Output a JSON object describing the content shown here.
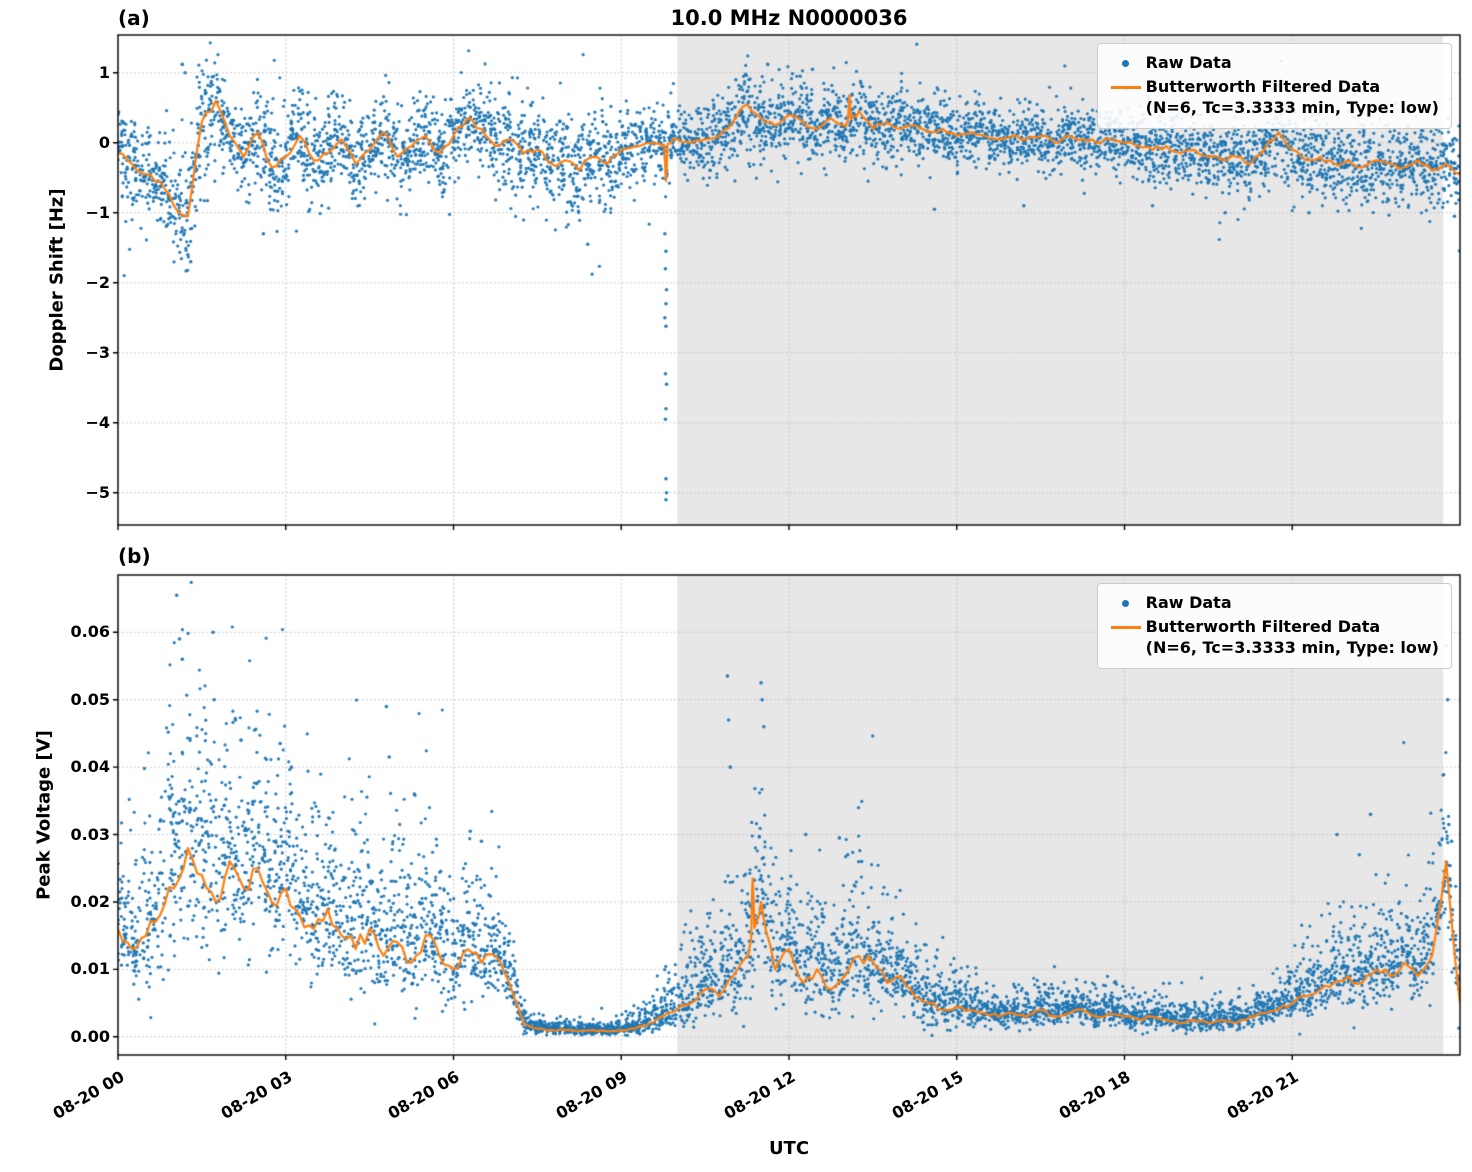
{
  "figure": {
    "xlabel": "UTC",
    "raw_color": "#1f77b4",
    "filtered_color": "#ff7f0e",
    "shade_color": "#e7e7e7",
    "legend": {
      "raw": "Raw Data",
      "filtered_line1": "Butterworth Filtered Data",
      "filtered_line2": "(N=6, Tc=3.3333 min, Type: low)"
    }
  },
  "chart_data": [
    {
      "type": "scatter",
      "panel": "(a)",
      "title": "10.0 MHz N0000036",
      "ylabel": "Doppler Shift [Hz]",
      "series": [
        {
          "name": "Raw Data"
        },
        {
          "name": "Butterworth Filtered Data (N=6, Tc=3.3333 min, Type: low)"
        }
      ],
      "xlim": [
        0,
        24
      ],
      "ylim": [
        -5.46,
        1.54
      ],
      "yticks": [
        1,
        0,
        -1,
        -2,
        -3,
        -4,
        -5
      ],
      "ytick_labels": [
        "1",
        "0",
        "−1",
        "−2",
        "−3",
        "−4",
        "−5"
      ],
      "xticks_hours": [
        0,
        3,
        6,
        9,
        12,
        15,
        18,
        21
      ],
      "xtick_labels": [
        "08-20 00",
        "08-20 03",
        "08-20 06",
        "08-20 09",
        "08-20 12",
        "08-20 15",
        "08-20 18",
        "08-20 21"
      ],
      "shade_span_hours": [
        10.0,
        23.7
      ],
      "grid": true,
      "legend_position": "upper right",
      "x_step": 0.25,
      "points_per_step": 55,
      "positive_only": false,
      "line_wiggle": 0.3,
      "filtered": [
        -0.15,
        -0.3,
        -0.45,
        -0.55,
        -0.9,
        -1.05,
        0.3,
        0.6,
        0.1,
        -0.2,
        0.15,
        -0.35,
        -0.2,
        0.1,
        -0.25,
        -0.15,
        0.05,
        -0.3,
        -0.1,
        0.15,
        -0.2,
        -0.05,
        0.1,
        -0.15,
        0.1,
        0.35,
        0.2,
        -0.05,
        0.05,
        -0.15,
        -0.1,
        -0.3,
        -0.25,
        -0.4,
        -0.2,
        -0.3,
        -0.1,
        -0.05,
        0.0,
        -0.05,
        0.05,
        0.0,
        0.05,
        0.1,
        0.3,
        0.55,
        0.35,
        0.25,
        0.4,
        0.3,
        0.2,
        0.35,
        0.25,
        0.45,
        0.2,
        0.3,
        0.2,
        0.25,
        0.15,
        0.2,
        0.1,
        0.15,
        0.1,
        0.05,
        0.1,
        0.05,
        0.1,
        0.0,
        0.1,
        0.05,
        0.0,
        0.05,
        0.0,
        -0.05,
        -0.1,
        -0.05,
        -0.15,
        -0.1,
        -0.2,
        -0.25,
        -0.2,
        -0.3,
        -0.1,
        0.15,
        -0.1,
        -0.25,
        -0.2,
        -0.3,
        -0.25,
        -0.35,
        -0.25,
        -0.3,
        -0.35,
        -0.25,
        -0.4,
        -0.3,
        -0.45
      ],
      "spread": [
        0.3,
        0.3,
        0.32,
        0.35,
        0.4,
        0.45,
        0.45,
        0.4,
        0.35,
        0.35,
        0.38,
        0.4,
        0.35,
        0.32,
        0.35,
        0.33,
        0.32,
        0.35,
        0.3,
        0.32,
        0.33,
        0.3,
        0.32,
        0.3,
        0.28,
        0.3,
        0.28,
        0.3,
        0.32,
        0.35,
        0.33,
        0.35,
        0.38,
        0.4,
        0.38,
        0.35,
        0.3,
        0.28,
        0.25,
        0.25,
        0.22,
        0.22,
        0.24,
        0.25,
        0.28,
        0.3,
        0.28,
        0.28,
        0.28,
        0.26,
        0.26,
        0.28,
        0.3,
        0.28,
        0.26,
        0.26,
        0.25,
        0.25,
        0.24,
        0.24,
        0.24,
        0.23,
        0.23,
        0.22,
        0.22,
        0.22,
        0.22,
        0.22,
        0.22,
        0.22,
        0.22,
        0.22,
        0.23,
        0.23,
        0.24,
        0.24,
        0.25,
        0.25,
        0.26,
        0.26,
        0.26,
        0.27,
        0.27,
        0.27,
        0.27,
        0.28,
        0.28,
        0.28,
        0.28,
        0.28,
        0.29,
        0.29,
        0.3,
        0.3,
        0.3,
        0.3,
        0.3
      ],
      "line_spikes": [
        [
          9.8,
          -0.55
        ],
        [
          13.08,
          0.68
        ]
      ],
      "outliers": [
        [
          9.78,
          -1.3
        ],
        [
          9.8,
          -1.55
        ],
        [
          9.79,
          -1.8
        ],
        [
          9.81,
          -2.1
        ],
        [
          9.8,
          -2.3
        ],
        [
          9.78,
          -2.5
        ],
        [
          9.8,
          -2.62
        ],
        [
          9.79,
          -3.3
        ],
        [
          9.81,
          -3.45
        ],
        [
          9.8,
          -3.8
        ],
        [
          9.79,
          -3.95
        ],
        [
          9.8,
          -4.8
        ],
        [
          9.81,
          -5.0
        ],
        [
          9.8,
          -5.1
        ],
        [
          11.62,
          1.12
        ],
        [
          12.42,
          1.05
        ],
        [
          11.05,
          0.9
        ],
        [
          12.2,
          0.95
        ],
        [
          1.15,
          1.12
        ],
        [
          1.2,
          1.0
        ],
        [
          1.3,
          -1.7
        ],
        [
          1.25,
          -1.6
        ],
        [
          8.4,
          -1.45
        ],
        [
          2.6,
          -1.3
        ],
        [
          23.9,
          -1.05
        ],
        [
          21.3,
          -1.0
        ],
        [
          14.6,
          -0.95
        ],
        [
          16.2,
          -0.9
        ],
        [
          18.5,
          -0.9
        ],
        [
          19.8,
          -1.0
        ]
      ]
    },
    {
      "type": "scatter",
      "panel": "(b)",
      "title": "",
      "ylabel": "Peak Voltage [V]",
      "series": [
        {
          "name": "Raw Data"
        },
        {
          "name": "Butterworth Filtered Data (N=6, Tc=3.3333 min, Type: low)"
        }
      ],
      "xlim": [
        0,
        24
      ],
      "ylim": [
        -0.0027,
        0.0685
      ],
      "yticks": [
        0.06,
        0.05,
        0.04,
        0.03,
        0.02,
        0.01,
        0.0
      ],
      "ytick_labels": [
        "0.06",
        "0.05",
        "0.04",
        "0.03",
        "0.02",
        "0.01",
        "0.00"
      ],
      "xticks_hours": [
        0,
        3,
        6,
        9,
        12,
        15,
        18,
        21
      ],
      "xtick_labels": [
        "08-20 00",
        "08-20 03",
        "08-20 06",
        "08-20 09",
        "08-20 12",
        "08-20 15",
        "08-20 18",
        "08-20 21"
      ],
      "shade_span_hours": [
        10.0,
        23.7
      ],
      "grid": true,
      "legend_position": "upper right",
      "x_step": 0.25,
      "points_per_step": 55,
      "positive_only": true,
      "line_wiggle": 0.3,
      "filtered": [
        0.016,
        0.013,
        0.015,
        0.018,
        0.022,
        0.028,
        0.024,
        0.02,
        0.026,
        0.022,
        0.025,
        0.02,
        0.022,
        0.018,
        0.016,
        0.019,
        0.015,
        0.013,
        0.016,
        0.012,
        0.014,
        0.011,
        0.015,
        0.012,
        0.01,
        0.013,
        0.011,
        0.012,
        0.008,
        0.002,
        0.0012,
        0.001,
        0.001,
        0.0009,
        0.001,
        0.0008,
        0.001,
        0.0012,
        0.002,
        0.003,
        0.004,
        0.005,
        0.007,
        0.006,
        0.009,
        0.012,
        0.02,
        0.01,
        0.013,
        0.008,
        0.01,
        0.007,
        0.009,
        0.012,
        0.011,
        0.008,
        0.009,
        0.006,
        0.005,
        0.004,
        0.0045,
        0.004,
        0.0035,
        0.003,
        0.0035,
        0.003,
        0.004,
        0.003,
        0.0035,
        0.004,
        0.003,
        0.0035,
        0.003,
        0.0025,
        0.003,
        0.0025,
        0.002,
        0.0025,
        0.002,
        0.0025,
        0.002,
        0.003,
        0.0035,
        0.004,
        0.005,
        0.006,
        0.007,
        0.008,
        0.009,
        0.008,
        0.01,
        0.009,
        0.011,
        0.009,
        0.012,
        0.026,
        0.005
      ],
      "spread": [
        0.007,
        0.007,
        0.008,
        0.009,
        0.011,
        0.013,
        0.012,
        0.011,
        0.011,
        0.01,
        0.011,
        0.01,
        0.01,
        0.009,
        0.009,
        0.009,
        0.009,
        0.009,
        0.01,
        0.008,
        0.008,
        0.007,
        0.008,
        0.007,
        0.006,
        0.007,
        0.006,
        0.005,
        0.003,
        0.0012,
        0.0008,
        0.0007,
        0.0007,
        0.0006,
        0.0007,
        0.0006,
        0.0008,
        0.001,
        0.0015,
        0.002,
        0.003,
        0.004,
        0.005,
        0.004,
        0.006,
        0.008,
        0.009,
        0.006,
        0.007,
        0.005,
        0.006,
        0.005,
        0.006,
        0.007,
        0.006,
        0.005,
        0.005,
        0.004,
        0.0035,
        0.003,
        0.0025,
        0.002,
        0.002,
        0.0018,
        0.0018,
        0.0018,
        0.002,
        0.0018,
        0.0018,
        0.002,
        0.0018,
        0.0018,
        0.0016,
        0.0015,
        0.0016,
        0.0015,
        0.0014,
        0.0015,
        0.0014,
        0.0015,
        0.0015,
        0.0018,
        0.002,
        0.0022,
        0.0028,
        0.0032,
        0.0036,
        0.004,
        0.0045,
        0.004,
        0.005,
        0.0045,
        0.0055,
        0.005,
        0.006,
        0.009,
        0.004
      ],
      "line_spikes": [
        [
          11.35,
          0.0235
        ]
      ],
      "outliers": [
        [
          1.05,
          0.0655
        ],
        [
          1.1,
          0.059
        ],
        [
          1.15,
          0.056
        ],
        [
          1.7,
          0.06
        ],
        [
          1.72,
          0.05
        ],
        [
          2.1,
          0.047
        ],
        [
          2.2,
          0.044
        ],
        [
          2.9,
          0.0435
        ],
        [
          3.1,
          0.04
        ],
        [
          4.8,
          0.049
        ],
        [
          4.85,
          0.0415
        ],
        [
          5.3,
          0.036
        ],
        [
          6.3,
          0.0305
        ],
        [
          6.5,
          0.029
        ],
        [
          10.9,
          0.0535
        ],
        [
          10.92,
          0.047
        ],
        [
          10.95,
          0.04
        ],
        [
          11.5,
          0.0525
        ],
        [
          11.52,
          0.05
        ],
        [
          11.55,
          0.046
        ],
        [
          12.3,
          0.03
        ],
        [
          12.9,
          0.0295
        ],
        [
          13.05,
          0.027
        ],
        [
          13.3,
          0.026
        ],
        [
          21.8,
          0.03
        ],
        [
          22.2,
          0.027
        ],
        [
          22.4,
          0.033
        ],
        [
          23.75,
          0.058
        ],
        [
          23.78,
          0.05
        ],
        [
          23.8,
          0.0315
        ],
        [
          23.85,
          0.029
        ]
      ]
    }
  ]
}
